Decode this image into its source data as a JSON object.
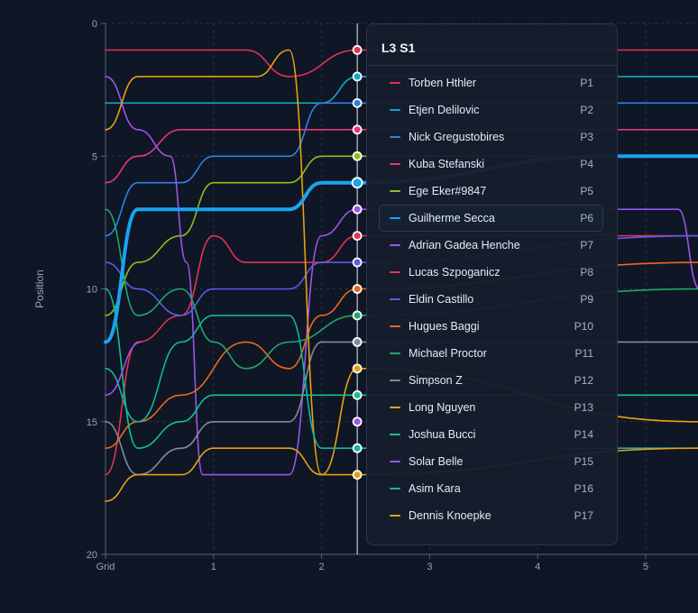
{
  "chart_data": {
    "type": "line",
    "title": "",
    "xlabel": "",
    "ylabel": "Position",
    "xlim": [
      0,
      5.5
    ],
    "ylim": [
      0,
      20
    ],
    "y_reversed": true,
    "x_ticks": [
      {
        "value": 0,
        "label": "Grid"
      },
      {
        "value": 1,
        "label": "1"
      },
      {
        "value": 2,
        "label": "2"
      },
      {
        "value": 3,
        "label": "3"
      },
      {
        "value": 4,
        "label": "4"
      },
      {
        "value": 5,
        "label": "5"
      }
    ],
    "y_ticks": [
      0,
      5,
      10,
      15,
      20
    ],
    "grid": true,
    "cursor_x": 2.33,
    "highlight_series": "Guilherme Secca",
    "series": [
      {
        "name": "Torben Hthler",
        "color": "#e0344f",
        "points": [
          [
            0,
            1
          ],
          [
            1.3,
            1
          ],
          [
            1.7,
            2
          ],
          [
            2.33,
            1
          ],
          [
            5.5,
            1
          ]
        ]
      },
      {
        "name": "Etjen Delilovic",
        "color": "#10a8c7",
        "points": [
          [
            0,
            3
          ],
          [
            2,
            3
          ],
          [
            2.33,
            2
          ],
          [
            5.5,
            2
          ]
        ]
      },
      {
        "name": "Nick Gregustobires",
        "color": "#2d82e6",
        "points": [
          [
            0,
            8
          ],
          [
            0.3,
            6
          ],
          [
            0.7,
            6
          ],
          [
            1,
            5
          ],
          [
            1.7,
            5
          ],
          [
            2,
            3
          ],
          [
            2.33,
            3
          ],
          [
            5.5,
            3
          ]
        ]
      },
      {
        "name": "Kuba Stefanski",
        "color": "#e8357a",
        "points": [
          [
            0,
            6
          ],
          [
            0.3,
            5
          ],
          [
            0.7,
            4
          ],
          [
            2.33,
            4
          ],
          [
            5.5,
            4
          ]
        ]
      },
      {
        "name": "Ege Eker#9847",
        "color": "#87c21c",
        "points": [
          [
            0,
            11
          ],
          [
            0.3,
            9
          ],
          [
            0.7,
            8
          ],
          [
            1,
            6
          ],
          [
            1.7,
            6
          ],
          [
            2,
            5
          ],
          [
            2.33,
            5
          ],
          [
            5.5,
            5
          ]
        ]
      },
      {
        "name": "Guilherme Secca",
        "color": "#1aa3f2",
        "points": [
          [
            0,
            12
          ],
          [
            0.3,
            7
          ],
          [
            1.7,
            7
          ],
          [
            2,
            6
          ],
          [
            2.33,
            6
          ],
          [
            4.7,
            5
          ],
          [
            5.5,
            5
          ]
        ]
      },
      {
        "name": "Adrian Gadea Henche",
        "color": "#9b55e8",
        "points": [
          [
            0,
            2
          ],
          [
            0.3,
            4
          ],
          [
            0.6,
            5
          ],
          [
            0.75,
            9
          ],
          [
            0.9,
            17
          ],
          [
            1.7,
            17
          ],
          [
            2,
            8
          ],
          [
            2.33,
            7
          ],
          [
            5.3,
            7
          ],
          [
            5.5,
            10
          ]
        ]
      },
      {
        "name": "Lucas Szpoganicz",
        "color": "#e0344f",
        "points": [
          [
            0,
            17
          ],
          [
            0.3,
            12
          ],
          [
            0.7,
            11
          ],
          [
            1,
            8
          ],
          [
            1.3,
            9
          ],
          [
            2,
            9
          ],
          [
            2.33,
            8
          ],
          [
            5.5,
            8
          ]
        ]
      },
      {
        "name": "Eldin Castillo",
        "color": "#5b5ce8",
        "points": [
          [
            0,
            9
          ],
          [
            0.3,
            10
          ],
          [
            0.7,
            11
          ],
          [
            1,
            10
          ],
          [
            1.7,
            10
          ],
          [
            2,
            9
          ],
          [
            2.33,
            9
          ],
          [
            5.5,
            8
          ]
        ]
      },
      {
        "name": "Hugues Baggi",
        "color": "#ea6a1a",
        "points": [
          [
            0,
            16
          ],
          [
            0.3,
            15
          ],
          [
            0.7,
            14
          ],
          [
            1.3,
            12
          ],
          [
            1.7,
            13
          ],
          [
            2,
            11
          ],
          [
            2.33,
            10
          ],
          [
            5.5,
            9
          ]
        ]
      },
      {
        "name": "Michael Proctor",
        "color": "#1fa868",
        "points": [
          [
            0,
            7
          ],
          [
            0.3,
            11
          ],
          [
            0.7,
            10
          ],
          [
            1,
            12
          ],
          [
            1.3,
            13
          ],
          [
            1.7,
            12
          ],
          [
            2.33,
            11
          ],
          [
            5.5,
            10
          ]
        ]
      },
      {
        "name": "Simpson Z",
        "color": "#858a96",
        "points": [
          [
            0,
            15
          ],
          [
            0.3,
            17
          ],
          [
            0.7,
            16
          ],
          [
            1,
            15
          ],
          [
            1.7,
            15
          ],
          [
            2,
            12
          ],
          [
            2.33,
            12
          ],
          [
            5.5,
            12
          ]
        ]
      },
      {
        "name": "Long Nguyen",
        "color": "#e7a015",
        "points": [
          [
            0,
            4
          ],
          [
            0.3,
            2
          ],
          [
            1.4,
            2
          ],
          [
            1.7,
            1
          ],
          [
            2,
            17
          ],
          [
            2.33,
            13
          ],
          [
            5.5,
            15
          ]
        ]
      },
      {
        "name": "Joshua Bucci",
        "color": "#13c38f",
        "points": [
          [
            0,
            10
          ],
          [
            0.3,
            16
          ],
          [
            0.7,
            15
          ],
          [
            1,
            14
          ],
          [
            1.7,
            14
          ],
          [
            2,
            14
          ],
          [
            2.33,
            14
          ],
          [
            5.5,
            14
          ]
        ]
      },
      {
        "name": "Solar Belle",
        "color": "#9b55e8",
        "points": [
          [
            0,
            14
          ],
          [
            0.33,
            12
          ]
        ]
      },
      {
        "name": "Asim Kara",
        "color": "#13b5a5",
        "points": [
          [
            0,
            13
          ],
          [
            0.3,
            15
          ],
          [
            0.7,
            12
          ],
          [
            1,
            11
          ],
          [
            1.7,
            11
          ],
          [
            2,
            16
          ],
          [
            2.33,
            16
          ],
          [
            5.5,
            16
          ]
        ]
      },
      {
        "name": "Dennis Knoepke",
        "color": "#e7a015",
        "points": [
          [
            0,
            18
          ],
          [
            0.3,
            17
          ],
          [
            0.7,
            17
          ],
          [
            1,
            16
          ],
          [
            1.7,
            16
          ],
          [
            2,
            17
          ],
          [
            2.33,
            17
          ],
          [
            5.5,
            16
          ]
        ]
      }
    ]
  },
  "tooltip": {
    "title": "L3 S1",
    "rows": [
      {
        "name": "Torben Hthler",
        "pos": "P1",
        "color": "#e0344f"
      },
      {
        "name": "Etjen Delilovic",
        "pos": "P2",
        "color": "#10a8c7"
      },
      {
        "name": "Nick Gregustobires",
        "pos": "P3",
        "color": "#2d82e6"
      },
      {
        "name": "Kuba Stefanski",
        "pos": "P4",
        "color": "#e8357a"
      },
      {
        "name": "Ege Eker#9847",
        "pos": "P5",
        "color": "#87c21c"
      },
      {
        "name": "Guilherme Secca",
        "pos": "P6",
        "color": "#1aa3f2",
        "highlight": true
      },
      {
        "name": "Adrian Gadea Henche",
        "pos": "P7",
        "color": "#9b55e8"
      },
      {
        "name": "Lucas Szpoganicz",
        "pos": "P8",
        "color": "#e0344f"
      },
      {
        "name": "Eldin Castillo",
        "pos": "P9",
        "color": "#5b5ce8"
      },
      {
        "name": "Hugues Baggi",
        "pos": "P10",
        "color": "#ea6a1a"
      },
      {
        "name": "Michael Proctor",
        "pos": "P11",
        "color": "#1fa868"
      },
      {
        "name": "Simpson Z",
        "pos": "P12",
        "color": "#858a96"
      },
      {
        "name": "Long Nguyen",
        "pos": "P13",
        "color": "#e7a015"
      },
      {
        "name": "Joshua Bucci",
        "pos": "P14",
        "color": "#13c38f"
      },
      {
        "name": "Solar Belle",
        "pos": "P15",
        "color": "#9b55e8"
      },
      {
        "name": "Asim Kara",
        "pos": "P16",
        "color": "#13b5a5"
      },
      {
        "name": "Dennis Knoepke",
        "pos": "P17",
        "color": "#e7a015"
      }
    ]
  }
}
